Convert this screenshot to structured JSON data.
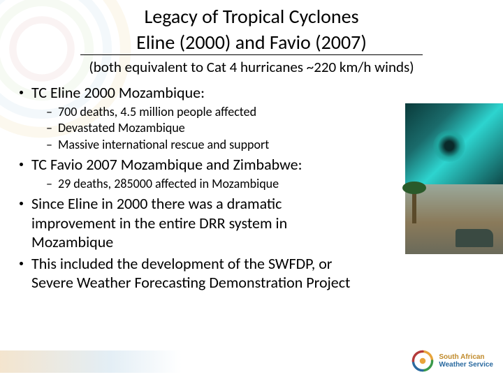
{
  "title": {
    "line1": "Legacy of Tropical Cyclones",
    "line2": "Eline (2000) and Favio (2007)",
    "subtitle": "(both equivalent to Cat 4 hurricanes ~220 km/h winds)",
    "underline_color": "#000000",
    "font_family": "Calibri",
    "title_fontsize": 28,
    "subtitle_fontsize": 21
  },
  "bullets": [
    {
      "text": "TC Eline 2000 Mozambique:",
      "sub": [
        "700 deaths, 4.5 million people affected",
        "Devastated Mozambique",
        "Massive international rescue and support"
      ]
    },
    {
      "text": "TC Favio 2007 Mozambique and Zimbabwe:",
      "sub": [
        "29 deaths, 285000 affected in Mozambique"
      ]
    },
    {
      "text": "Since Eline in 2000 there was a dramatic improvement in the entire DRR system in Mozambique",
      "sub": []
    },
    {
      "text": "This included the development of the SWFDP, or Severe Weather Forecasting Demonstration Project",
      "sub": []
    }
  ],
  "style": {
    "bullet_fontsize": 22,
    "sub_fontsize": 18,
    "text_color": "#000000",
    "background_color": "#ffffff",
    "bullet_dot_color": "#000000",
    "dash_char": "–"
  },
  "images": {
    "satellite": {
      "alt": "Satellite image of tropical cyclone over Mozambique channel",
      "dominant_colors": [
        "#0a3a3a",
        "#2dd4cf",
        "#1a6b6b"
      ]
    },
    "flood": {
      "alt": "Flood damage scene with submerged car and palm trees",
      "dominant_colors": [
        "#8a7a5a",
        "#3a4a42",
        "#2a5a2a"
      ]
    }
  },
  "logo": {
    "line1": "South African",
    "line2": "Weather Service",
    "line3": "",
    "swirl_colors": [
      "#e8a43a",
      "#b43a3a",
      "#2a6aa0",
      "#3a9a4a"
    ]
  },
  "bg_swirl_colors": [
    "#e8c87a",
    "#b8d8a0",
    "#a0c8e0",
    "#d8a0a0"
  ]
}
